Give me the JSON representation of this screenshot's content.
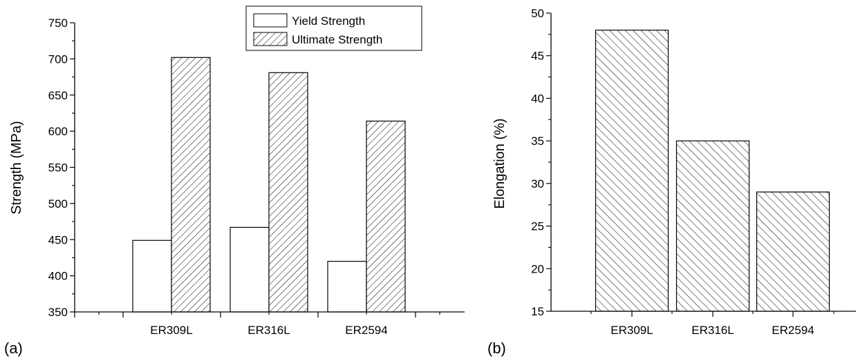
{
  "chart_data": [
    {
      "type": "bar",
      "panel_label": "(a)",
      "title": "",
      "xlabel": "",
      "ylabel": "Strength (MPa)",
      "categories": [
        "ER309L",
        "ER316L",
        "ER2594"
      ],
      "series": [
        {
          "name": "Yield Strength",
          "values": [
            449,
            467,
            420
          ],
          "fill": "white"
        },
        {
          "name": "Ultimate Strength",
          "values": [
            702,
            681,
            614
          ],
          "fill": "hatch-forward"
        }
      ],
      "ylim": [
        350,
        750
      ],
      "yticks": [
        350,
        400,
        450,
        500,
        550,
        600,
        650,
        700,
        750
      ],
      "grid": false,
      "legend": "top-right"
    },
    {
      "type": "bar",
      "panel_label": "(b)",
      "title": "",
      "xlabel": "",
      "ylabel": "Elongation (%)",
      "categories": [
        "ER309L",
        "ER316L",
        "ER2594"
      ],
      "series": [
        {
          "values": [
            48,
            35,
            29
          ],
          "fill": "hatch-backward"
        }
      ],
      "ylim": [
        15,
        50
      ],
      "yticks": [
        15,
        20,
        25,
        30,
        35,
        40,
        45,
        50
      ],
      "grid": false,
      "legend": "none"
    }
  ]
}
